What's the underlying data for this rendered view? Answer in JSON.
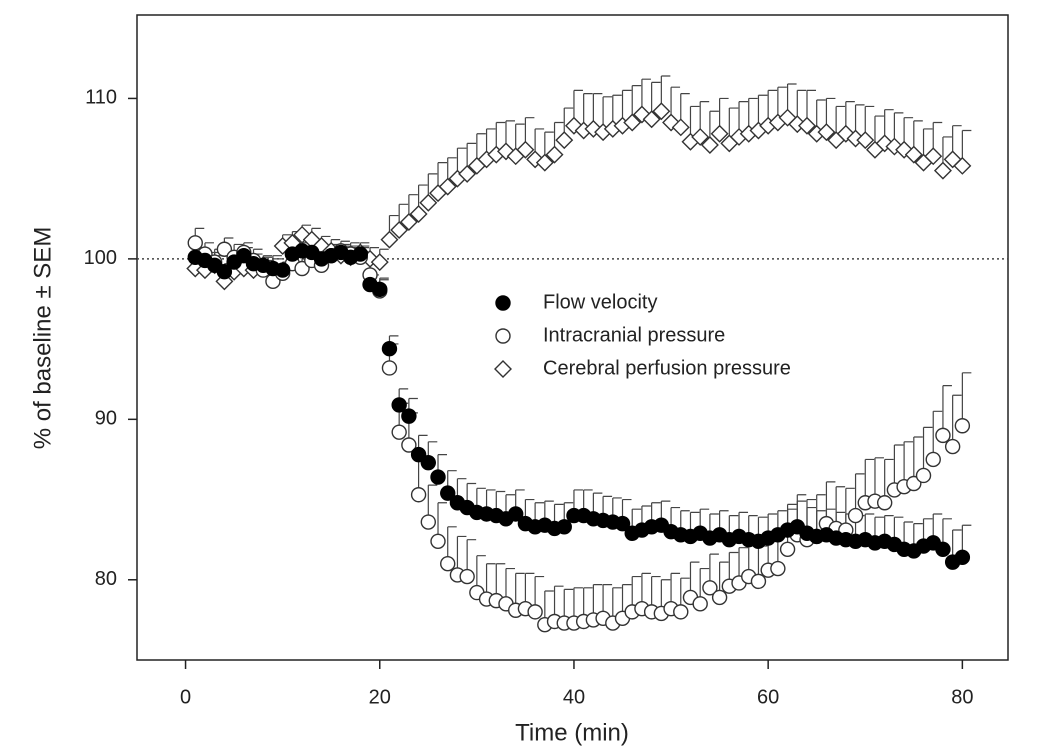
{
  "chart_data": {
    "type": "scatter",
    "x_label": "Time (min)",
    "y_label": "% of baseline ± SEM",
    "xlim": [
      -5,
      84.7
    ],
    "ylim": [
      75,
      115.2
    ],
    "xticks": [
      0,
      20,
      40,
      60,
      80
    ],
    "yticks": [
      80,
      90,
      100,
      110
    ],
    "hline": 100,
    "legend": "center",
    "x": [
      1,
      2,
      3,
      4,
      5,
      6,
      7,
      8,
      9,
      10,
      11,
      12,
      13,
      14,
      15,
      16,
      17,
      18,
      19,
      20,
      21,
      22,
      23,
      24,
      25,
      26,
      27,
      28,
      29,
      30,
      31,
      32,
      33,
      34,
      35,
      36,
      37,
      38,
      39,
      40,
      41,
      42,
      43,
      44,
      45,
      46,
      47,
      48,
      49,
      50,
      51,
      52,
      53,
      54,
      55,
      56,
      57,
      58,
      59,
      60,
      61,
      62,
      63,
      64,
      65,
      66,
      67,
      68,
      69,
      70,
      71,
      72,
      73,
      74,
      75,
      76,
      77,
      78,
      79,
      80
    ],
    "series": [
      {
        "name": "Cerebral perfusion pressure",
        "color": "#333333",
        "marker": "diamond",
        "values": [
          99.4,
          99.3,
          99.6,
          98.6,
          99.2,
          99.4,
          99.3,
          99.6,
          99.4,
          100.8,
          101.0,
          101.5,
          101.2,
          100.8,
          100.5,
          100.2,
          100.1,
          100.4,
          100.0,
          99.8,
          101.2,
          101.8,
          102.3,
          102.8,
          103.5,
          104.1,
          104.5,
          105.0,
          105.3,
          105.8,
          106.2,
          106.5,
          106.7,
          106.4,
          106.8,
          106.2,
          106.0,
          106.5,
          107.4,
          108.3,
          108.0,
          108.1,
          107.9,
          108.1,
          108.3,
          108.5,
          109.0,
          108.7,
          109.2,
          108.5,
          108.2,
          107.3,
          107.6,
          107.1,
          107.8,
          107.2,
          107.6,
          107.8,
          108.0,
          108.3,
          108.5,
          108.8,
          108.4,
          108.3,
          107.8,
          107.9,
          107.4,
          107.8,
          107.5,
          107.4,
          106.8,
          107.2,
          107.0,
          106.8,
          106.5,
          106.0,
          106.4,
          105.5,
          106.2,
          105.8
        ],
        "errors": [
          0.9,
          0.7,
          0.8,
          0.7,
          0.8,
          0.6,
          0.7,
          0.6,
          0.8,
          0.7,
          0.7,
          0.6,
          0.7,
          0.6,
          0.7,
          0.6,
          0.7,
          0.6,
          0.7,
          0.8,
          1.5,
          1.6,
          1.7,
          1.8,
          1.8,
          1.9,
          1.8,
          1.9,
          1.9,
          2.0,
          1.9,
          2.0,
          1.9,
          2.0,
          2.0,
          1.9,
          1.9,
          2.0,
          2.0,
          2.2,
          2.3,
          2.2,
          2.2,
          2.1,
          2.2,
          2.3,
          2.2,
          2.3,
          2.2,
          2.2,
          2.1,
          2.2,
          2.2,
          2.1,
          2.2,
          2.2,
          2.2,
          2.2,
          2.2,
          2.2,
          2.2,
          2.1,
          2.1,
          2.2,
          2.1,
          2.1,
          2.1,
          2.0,
          2.1,
          2.1,
          2.1,
          2.1,
          2.1,
          2.0,
          2.1,
          2.1,
          2.1,
          2.1,
          2.1,
          2.2
        ]
      },
      {
        "name": "Intracranial pressure",
        "color": "#333333",
        "marker": "open-circle",
        "values": [
          101.0,
          100.3,
          99.8,
          100.6,
          100.1,
          100.4,
          99.9,
          99.3,
          98.6,
          99.1,
          99.7,
          99.4,
          99.9,
          99.6,
          100.2,
          100.5,
          100.3,
          100.1,
          99.0,
          98.0,
          93.2,
          89.2,
          88.4,
          85.3,
          83.6,
          82.4,
          81.0,
          80.3,
          80.2,
          79.2,
          78.8,
          78.7,
          78.5,
          78.1,
          78.2,
          78.0,
          77.2,
          77.4,
          77.3,
          77.3,
          77.4,
          77.5,
          77.6,
          77.3,
          77.6,
          78.0,
          78.2,
          78.0,
          77.9,
          78.2,
          78.0,
          78.9,
          78.5,
          79.5,
          78.9,
          79.6,
          79.8,
          80.2,
          79.9,
          80.6,
          80.7,
          81.9,
          82.8,
          82.5,
          82.7,
          83.5,
          83.2,
          83.1,
          84.0,
          84.8,
          84.9,
          84.8,
          85.6,
          85.8,
          86.0,
          86.5,
          87.5,
          89.0,
          88.3,
          89.6
        ],
        "errors": [
          0.9,
          0.7,
          0.8,
          0.7,
          0.8,
          0.6,
          0.7,
          0.6,
          0.8,
          0.7,
          0.7,
          0.6,
          0.7,
          0.6,
          0.7,
          0.6,
          0.7,
          0.6,
          0.7,
          0.8,
          1.5,
          1.8,
          2.0,
          2.2,
          2.3,
          2.4,
          2.3,
          2.4,
          2.3,
          2.3,
          2.2,
          2.3,
          2.2,
          2.3,
          2.2,
          2.2,
          2.1,
          2.2,
          2.1,
          2.2,
          2.1,
          2.2,
          2.1,
          2.2,
          2.1,
          2.2,
          2.2,
          2.2,
          2.1,
          2.2,
          2.1,
          2.2,
          2.2,
          2.1,
          2.2,
          2.1,
          2.2,
          2.2,
          2.2,
          2.3,
          2.4,
          2.5,
          2.5,
          2.5,
          2.6,
          2.6,
          2.6,
          2.6,
          2.6,
          2.7,
          2.7,
          2.7,
          2.8,
          2.8,
          2.9,
          3.0,
          3.0,
          3.1,
          3.2,
          3.3
        ]
      },
      {
        "name": "Flow velocity",
        "color": "#000000",
        "marker": "filled-circle",
        "values": [
          100.1,
          99.9,
          99.6,
          99.2,
          99.8,
          100.2,
          99.7,
          99.6,
          99.4,
          99.3,
          100.3,
          100.5,
          100.4,
          100.0,
          100.2,
          100.4,
          100.1,
          100.3,
          98.4,
          98.1,
          94.4,
          90.9,
          90.2,
          87.8,
          87.3,
          86.4,
          85.4,
          84.8,
          84.5,
          84.2,
          84.1,
          84.0,
          83.8,
          84.1,
          83.5,
          83.3,
          83.4,
          83.2,
          83.3,
          84.0,
          84.0,
          83.8,
          83.7,
          83.6,
          83.5,
          82.9,
          83.1,
          83.3,
          83.4,
          83.0,
          82.8,
          82.7,
          82.9,
          82.6,
          82.8,
          82.5,
          82.7,
          82.5,
          82.4,
          82.6,
          82.8,
          83.1,
          83.3,
          82.9,
          82.7,
          82.8,
          82.6,
          82.5,
          82.4,
          82.5,
          82.3,
          82.4,
          82.2,
          81.9,
          81.8,
          82.1,
          82.3,
          81.9,
          81.1,
          81.4
        ],
        "errors": [
          0.6,
          0.5,
          0.6,
          0.5,
          0.6,
          0.5,
          0.6,
          0.5,
          0.6,
          0.5,
          0.6,
          0.5,
          0.6,
          0.5,
          0.6,
          0.5,
          0.6,
          0.5,
          0.6,
          0.6,
          0.8,
          1.0,
          1.1,
          1.2,
          1.3,
          1.4,
          1.4,
          1.5,
          1.5,
          1.5,
          1.5,
          1.5,
          1.5,
          1.5,
          1.5,
          1.5,
          1.5,
          1.5,
          1.5,
          1.6,
          1.6,
          1.6,
          1.5,
          1.5,
          1.5,
          1.5,
          1.5,
          1.5,
          1.5,
          1.5,
          1.5,
          1.5,
          1.5,
          1.5,
          1.5,
          1.5,
          1.5,
          1.5,
          1.5,
          1.5,
          1.5,
          1.6,
          1.6,
          1.6,
          1.6,
          1.6,
          1.6,
          1.6,
          1.6,
          1.6,
          1.6,
          1.6,
          1.7,
          1.7,
          1.7,
          1.7,
          1.8,
          1.9,
          2.0,
          2.0
        ]
      }
    ]
  }
}
